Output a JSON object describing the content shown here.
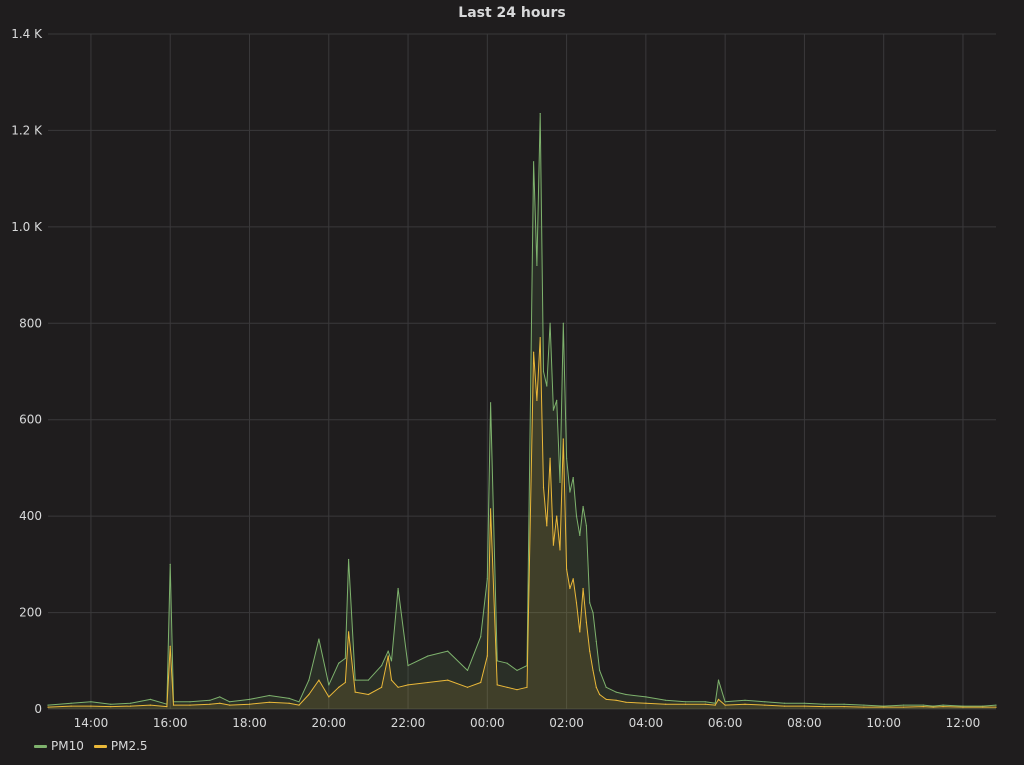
{
  "panel": {
    "title": "Last 24 hours"
  },
  "colors": {
    "background": "#1f1d1e",
    "grid": "#3a393b",
    "text": "#d8d9da"
  },
  "chart_data": {
    "type": "area",
    "title": "Last 24 hours",
    "xlabel": "",
    "ylabel": "",
    "x_unit": "hours",
    "x_ticks": [
      "14:00",
      "16:00",
      "18:00",
      "20:00",
      "22:00",
      "00:00",
      "02:00",
      "04:00",
      "06:00",
      "08:00",
      "10:00",
      "12:00"
    ],
    "y_ticks": [
      "0",
      "200",
      "400",
      "600",
      "800",
      "1.0 K",
      "1.2 K",
      "1.4 K"
    ],
    "ylim": [
      0,
      1400
    ],
    "xlim": [
      "12:55",
      "12:50"
    ],
    "grid": true,
    "legend_position": "bottom-left",
    "x": [
      "12:55",
      "13:30",
      "14:00",
      "14:30",
      "15:00",
      "15:30",
      "15:55",
      "16:00",
      "16:05",
      "16:30",
      "17:00",
      "17:15",
      "17:30",
      "18:00",
      "18:30",
      "19:00",
      "19:15",
      "19:30",
      "19:45",
      "20:00",
      "20:15",
      "20:25",
      "20:30",
      "20:40",
      "21:00",
      "21:20",
      "21:30",
      "21:35",
      "21:45",
      "22:00",
      "22:30",
      "23:00",
      "23:30",
      "23:50",
      "00:00",
      "00:05",
      "00:15",
      "00:30",
      "00:45",
      "01:00",
      "01:10",
      "01:15",
      "01:20",
      "01:25",
      "01:30",
      "01:35",
      "01:40",
      "01:45",
      "01:50",
      "01:55",
      "02:00",
      "02:05",
      "02:10",
      "02:15",
      "02:20",
      "02:25",
      "02:30",
      "02:35",
      "02:40",
      "02:45",
      "02:50",
      "03:00",
      "03:15",
      "03:30",
      "04:00",
      "04:30",
      "05:00",
      "05:30",
      "05:45",
      "05:50",
      "06:00",
      "06:30",
      "07:00",
      "07:30",
      "08:00",
      "08:30",
      "09:00",
      "09:30",
      "10:00",
      "10:30",
      "11:00",
      "11:15",
      "11:30",
      "12:00",
      "12:30",
      "12:50"
    ],
    "series": [
      {
        "name": "PM10",
        "color": "#7eb26d",
        "values": [
          8,
          12,
          15,
          10,
          12,
          20,
          10,
          300,
          15,
          15,
          18,
          25,
          15,
          20,
          28,
          22,
          15,
          60,
          145,
          50,
          95,
          105,
          310,
          60,
          60,
          90,
          120,
          100,
          250,
          90,
          110,
          120,
          80,
          150,
          270,
          635,
          100,
          95,
          80,
          90,
          1135,
          920,
          1235,
          700,
          670,
          800,
          620,
          640,
          470,
          800,
          520,
          450,
          480,
          400,
          360,
          420,
          380,
          220,
          200,
          140,
          80,
          45,
          35,
          30,
          25,
          18,
          15,
          15,
          12,
          60,
          15,
          18,
          15,
          12,
          12,
          10,
          10,
          8,
          6,
          8,
          8,
          6,
          8,
          6,
          6,
          8
        ]
      },
      {
        "name": "PM2.5",
        "color": "#eab839",
        "values": [
          4,
          6,
          6,
          5,
          6,
          8,
          5,
          130,
          8,
          8,
          10,
          12,
          8,
          10,
          14,
          12,
          8,
          30,
          60,
          25,
          45,
          55,
          160,
          35,
          30,
          45,
          110,
          60,
          45,
          50,
          55,
          60,
          45,
          55,
          110,
          415,
          50,
          45,
          40,
          45,
          740,
          640,
          770,
          460,
          380,
          520,
          340,
          400,
          330,
          560,
          290,
          250,
          270,
          220,
          160,
          250,
          180,
          120,
          80,
          45,
          30,
          20,
          18,
          14,
          12,
          10,
          10,
          10,
          8,
          20,
          8,
          10,
          8,
          6,
          6,
          5,
          5,
          4,
          4,
          4,
          5,
          4,
          5,
          4,
          4,
          4
        ]
      }
    ]
  },
  "legend": [
    {
      "label": "PM10",
      "color": "#7eb26d"
    },
    {
      "label": "PM2.5",
      "color": "#eab839"
    }
  ]
}
